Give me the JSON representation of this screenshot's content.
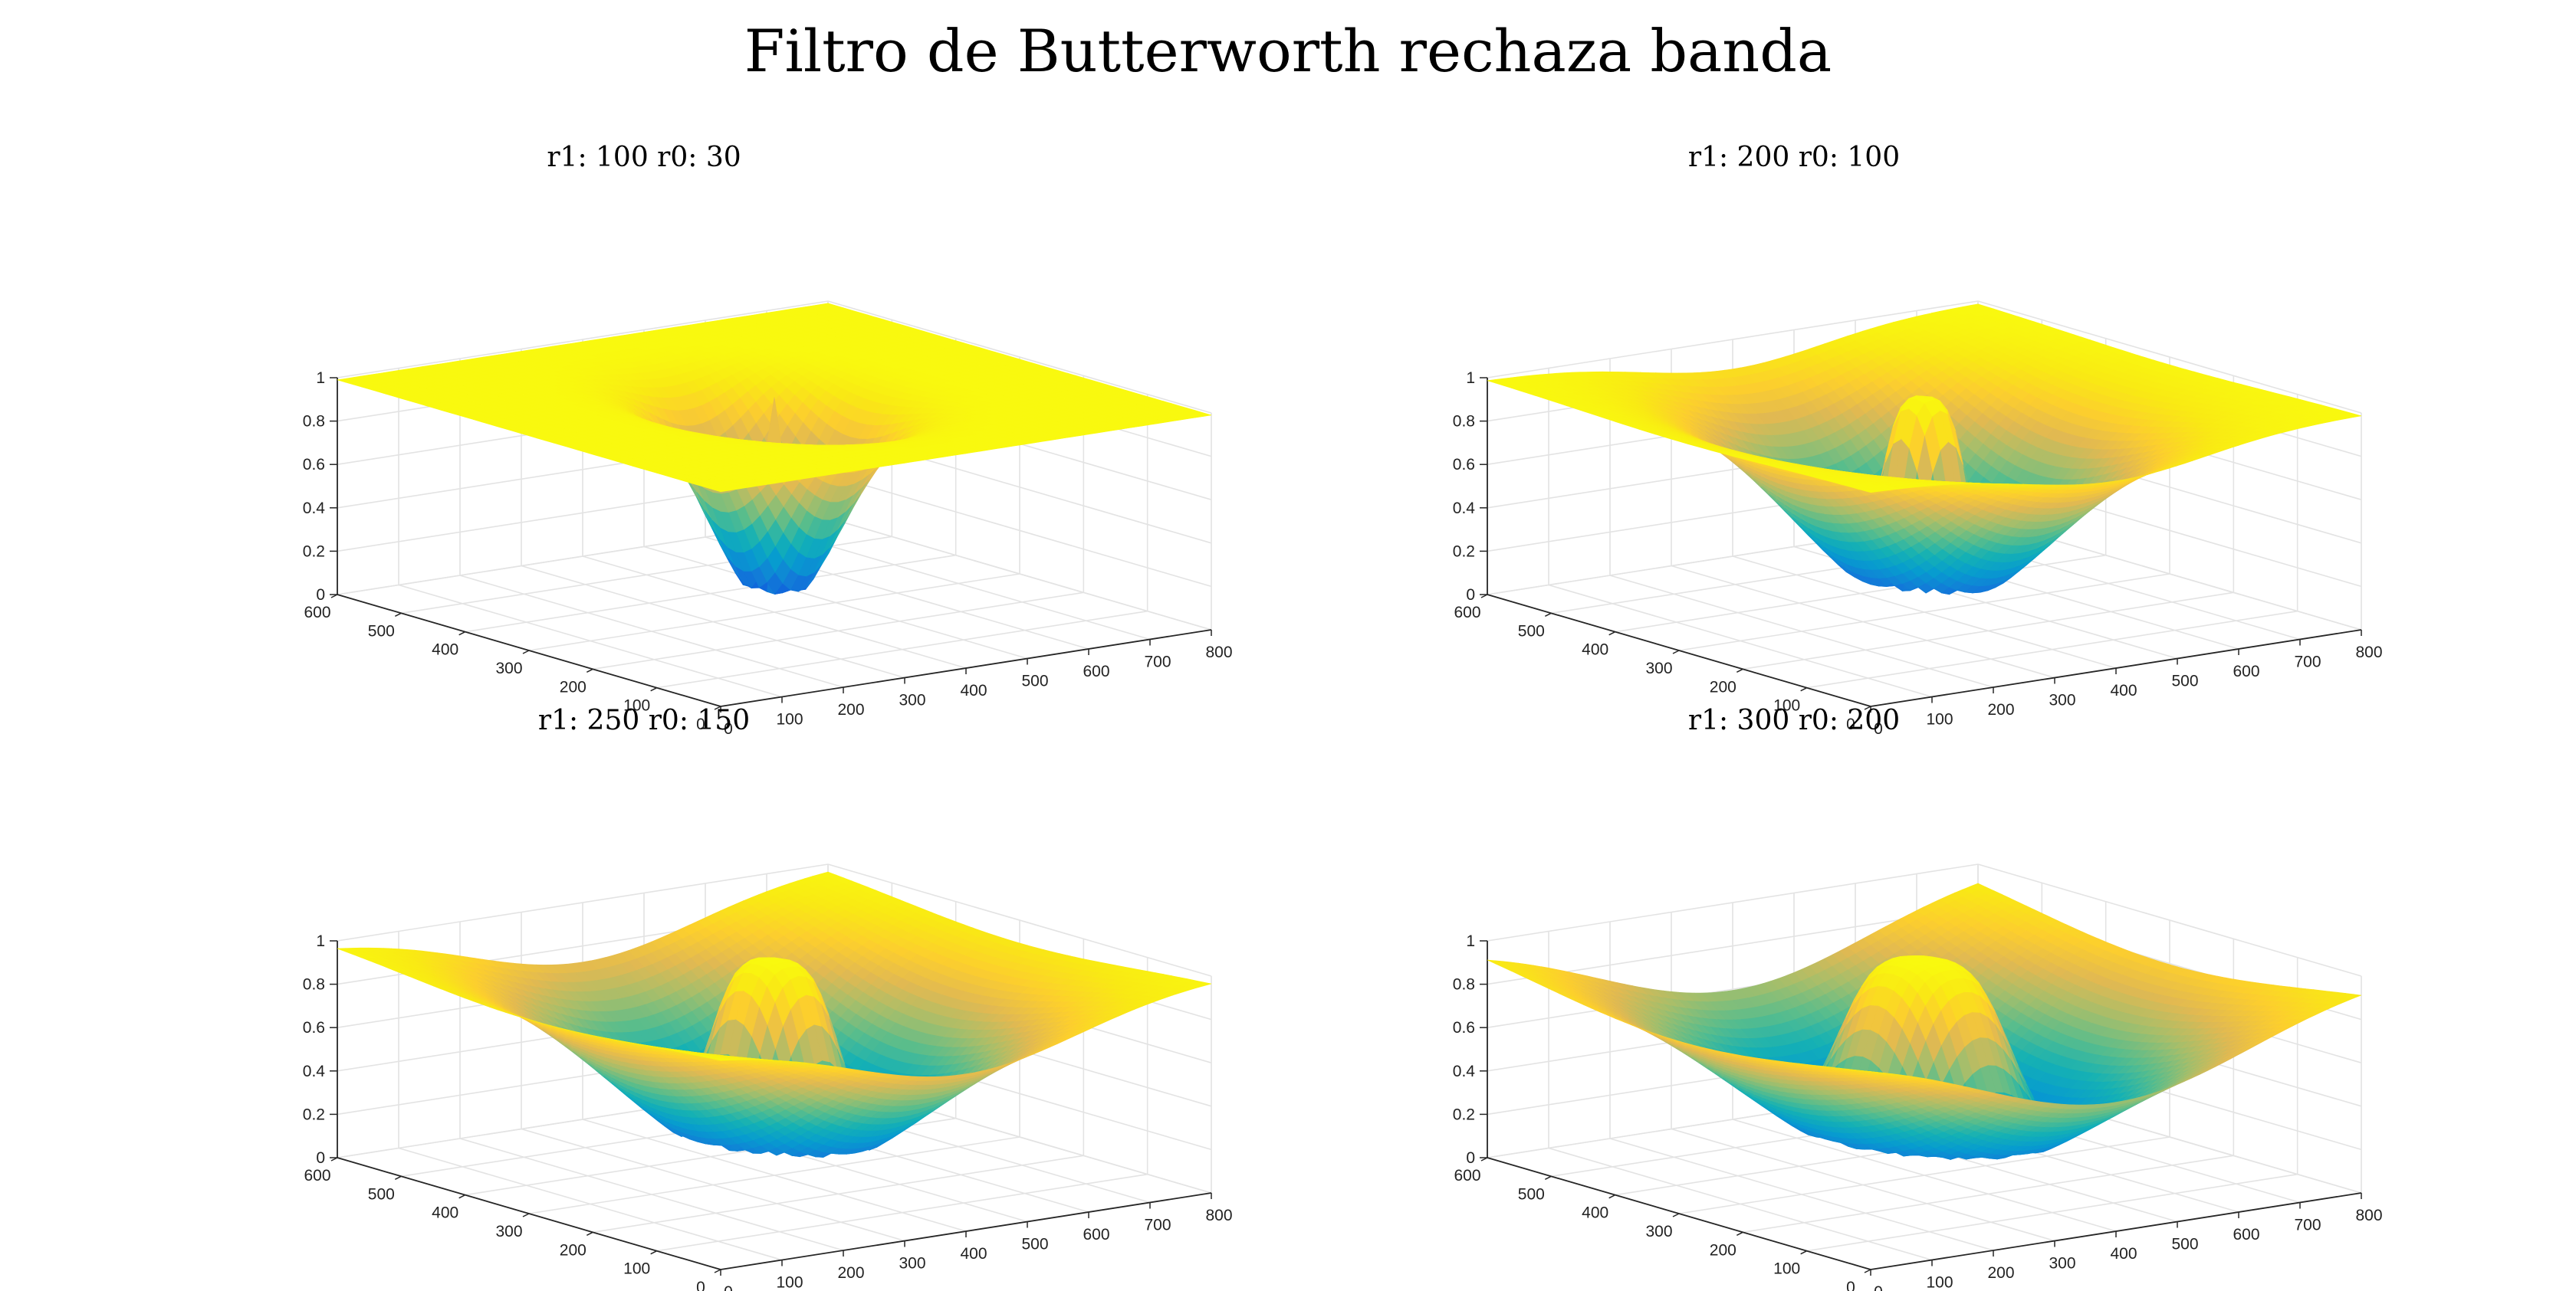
{
  "figure": {
    "title": "Filtro de Butterworth rechaza banda"
  },
  "colors": {
    "colormap": "parula",
    "grid": "#e3e3e3",
    "axis": "#262626",
    "background": "#ffffff"
  },
  "chart_data": [
    {
      "type": "surface",
      "title": "r1: 100 r0: 30",
      "params": {
        "r1": 100,
        "r0": 30
      },
      "xlim": [
        0,
        800
      ],
      "ylim": [
        0,
        600
      ],
      "zlim": [
        0,
        1
      ],
      "x_ticks": [
        "0",
        "100",
        "200",
        "300",
        "400",
        "500",
        "600",
        "700",
        "800"
      ],
      "y_ticks": [
        "0",
        "100",
        "200",
        "300",
        "400",
        "500",
        "600"
      ],
      "z_ticks": [
        "0",
        "0.2",
        "0.4",
        "0.6",
        "0.8",
        "1"
      ],
      "grid": true,
      "view": "3d"
    },
    {
      "type": "surface",
      "title": "r1: 200 r0: 100",
      "params": {
        "r1": 200,
        "r0": 100
      },
      "xlim": [
        0,
        800
      ],
      "ylim": [
        0,
        600
      ],
      "zlim": [
        0,
        1
      ],
      "x_ticks": [
        "0",
        "100",
        "200",
        "300",
        "400",
        "500",
        "600",
        "700",
        "800"
      ],
      "y_ticks": [
        "0",
        "100",
        "200",
        "300",
        "400",
        "500",
        "600"
      ],
      "z_ticks": [
        "0",
        "0.2",
        "0.4",
        "0.6",
        "0.8",
        "1"
      ],
      "grid": true,
      "view": "3d"
    },
    {
      "type": "surface",
      "title": "r1: 250 r0: 150",
      "params": {
        "r1": 250,
        "r0": 150
      },
      "xlim": [
        0,
        800
      ],
      "ylim": [
        0,
        600
      ],
      "zlim": [
        0,
        1
      ],
      "x_ticks": [
        "0",
        "100",
        "200",
        "300",
        "400",
        "500",
        "600",
        "700",
        "800"
      ],
      "y_ticks": [
        "0",
        "100",
        "200",
        "300",
        "400",
        "500",
        "600"
      ],
      "z_ticks": [
        "0",
        "0.2",
        "0.4",
        "0.6",
        "0.8",
        "1"
      ],
      "grid": true,
      "view": "3d"
    },
    {
      "type": "surface",
      "title": "r1: 300 r0: 200",
      "params": {
        "r1": 300,
        "r0": 200
      },
      "xlim": [
        0,
        800
      ],
      "ylim": [
        0,
        600
      ],
      "zlim": [
        0,
        1
      ],
      "x_ticks": [
        "0",
        "100",
        "200",
        "300",
        "400",
        "500",
        "600",
        "700",
        "800"
      ],
      "y_ticks": [
        "0",
        "100",
        "200",
        "300",
        "400",
        "500",
        "600"
      ],
      "z_ticks": [
        "0",
        "0.2",
        "0.4",
        "0.6",
        "0.8",
        "1"
      ],
      "grid": true,
      "view": "3d"
    }
  ]
}
